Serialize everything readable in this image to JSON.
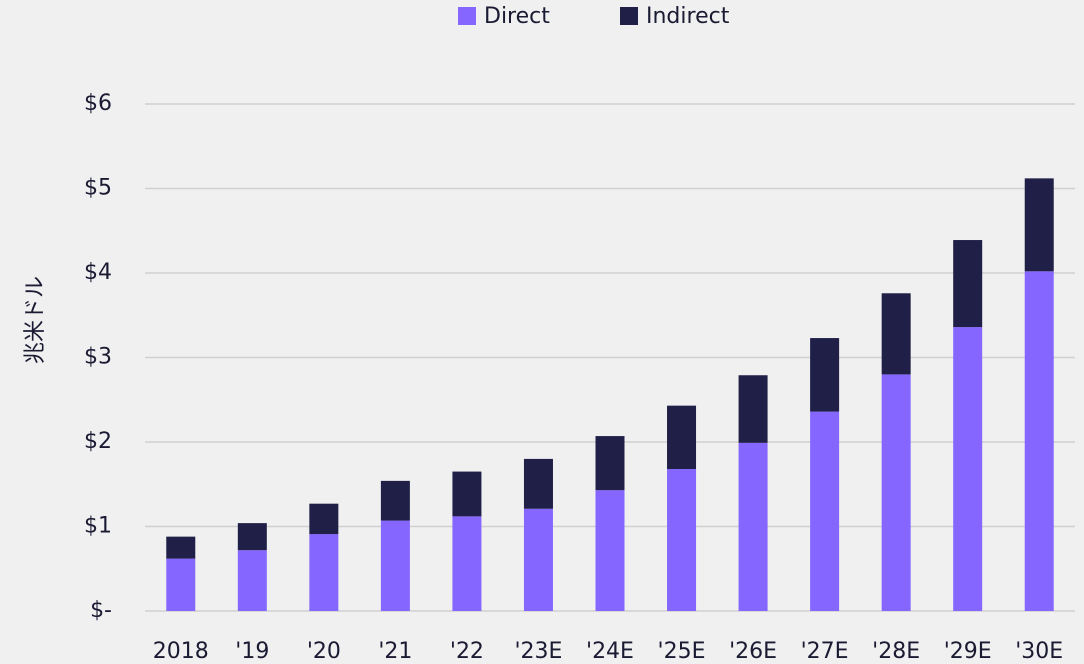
{
  "chart_data": {
    "type": "stacked_bar",
    "y_label": "兆米ドル",
    "categories": [
      "2018",
      "'19",
      "'20",
      "'21",
      "'22",
      "'23E",
      "'24E",
      "'25E",
      "'26E",
      "'27E",
      "'28E",
      "'29E",
      "'30E"
    ],
    "series": [
      {
        "name": "Direct",
        "color": "#8566ff",
        "values": [
          0.62,
          0.72,
          0.91,
          1.07,
          1.12,
          1.21,
          1.43,
          1.68,
          1.99,
          2.36,
          2.8,
          3.36,
          4.02
        ]
      },
      {
        "name": "Indirect",
        "color": "#1f1f47",
        "values": [
          0.26,
          0.32,
          0.36,
          0.47,
          0.53,
          0.59,
          0.64,
          0.75,
          0.8,
          0.87,
          0.96,
          1.03,
          1.1
        ]
      }
    ],
    "ylim": [
      0,
      6
    ],
    "yticks": [
      {
        "value": 0,
        "label": "$-"
      },
      {
        "value": 1,
        "label": "$1"
      },
      {
        "value": 2,
        "label": "$2"
      },
      {
        "value": 3,
        "label": "$3"
      },
      {
        "value": 4,
        "label": "$4"
      },
      {
        "value": 5,
        "label": "$5"
      },
      {
        "value": 6,
        "label": "$6"
      }
    ],
    "grid": true,
    "legend": "top"
  }
}
